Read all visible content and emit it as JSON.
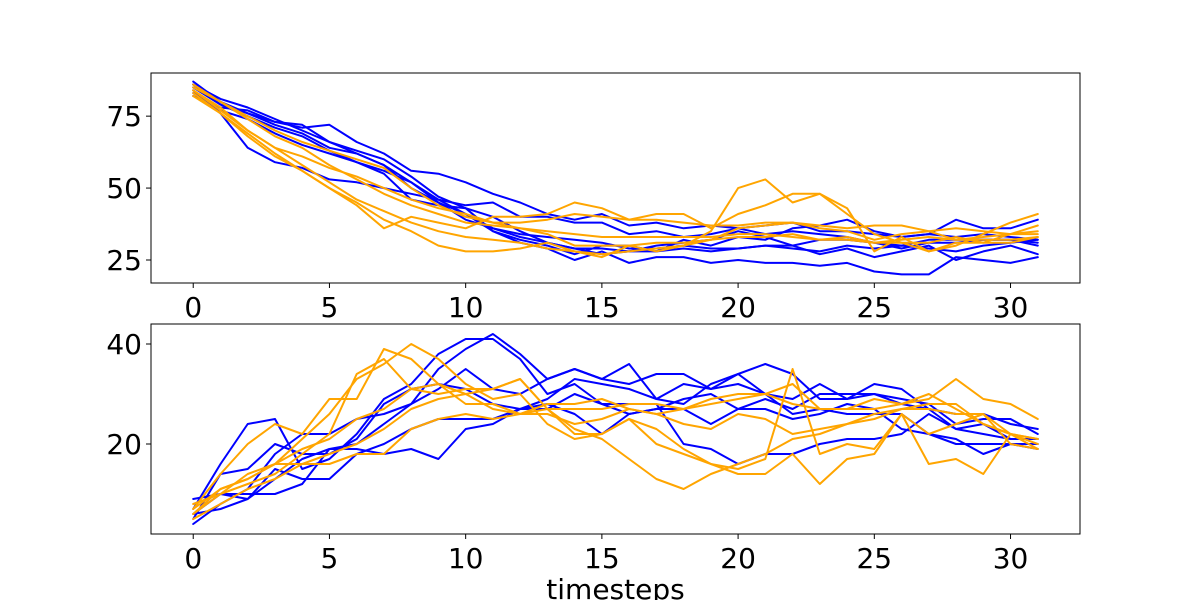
{
  "chart_data": [
    {
      "type": "line",
      "xlabel": "",
      "ylabel": "",
      "xlim": [
        -1.55,
        32.55
      ],
      "ylim": [
        17,
        90
      ],
      "xticks": [
        0,
        5,
        10,
        15,
        20,
        25,
        30
      ],
      "yticks": [
        25,
        50,
        75
      ],
      "grid": false,
      "x": [
        0,
        1,
        2,
        3,
        4,
        5,
        6,
        7,
        8,
        9,
        10,
        11,
        12,
        13,
        14,
        15,
        16,
        17,
        18,
        19,
        20,
        21,
        22,
        23,
        24,
        25,
        26,
        27,
        28,
        29,
        30,
        31
      ],
      "series": [
        {
          "color": "#0000ff",
          "values": [
            87,
            80,
            76,
            73,
            72,
            66,
            62,
            58,
            50,
            45,
            41,
            35,
            31,
            29,
            25,
            28,
            24,
            26,
            26,
            24,
            25,
            24,
            24,
            23,
            24,
            21,
            20,
            20,
            26,
            25,
            24,
            26
          ]
        },
        {
          "color": "#0000ff",
          "values": [
            86,
            81,
            78,
            74,
            70,
            66,
            63,
            60,
            54,
            47,
            43,
            40,
            35,
            31,
            29,
            27,
            28,
            28,
            29,
            28,
            29,
            30,
            29,
            28,
            30,
            29,
            30,
            29,
            28,
            30,
            31,
            32
          ]
        },
        {
          "color": "#0000ff",
          "values": [
            85,
            79,
            76,
            72,
            69,
            64,
            62,
            58,
            52,
            45,
            39,
            36,
            33,
            31,
            29,
            29,
            28,
            30,
            31,
            32,
            35,
            33,
            30,
            27,
            29,
            26,
            28,
            30,
            25,
            28,
            30,
            27
          ]
        },
        {
          "color": "#0000ff",
          "values": [
            84,
            76,
            64,
            59,
            57,
            53,
            52,
            50,
            48,
            46,
            41,
            36,
            34,
            33,
            32,
            31,
            29,
            29,
            30,
            29,
            29,
            30,
            30,
            32,
            32,
            31,
            29,
            31,
            31,
            32,
            32,
            31
          ]
        },
        {
          "color": "#0000ff",
          "values": [
            83,
            77,
            74,
            69,
            65,
            62,
            59,
            55,
            46,
            44,
            43,
            35,
            32,
            30,
            27,
            30,
            30,
            28,
            32,
            30,
            33,
            32,
            36,
            37,
            39,
            35,
            33,
            34,
            39,
            36,
            36,
            39
          ]
        },
        {
          "color": "#0000ff",
          "values": [
            82,
            78,
            77,
            73,
            71,
            72,
            66,
            62,
            56,
            55,
            52,
            48,
            45,
            41,
            39,
            41,
            37,
            38,
            36,
            37,
            36,
            37,
            38,
            35,
            35,
            34,
            33,
            34,
            33,
            34,
            33,
            32
          ]
        },
        {
          "color": "#0000ff",
          "values": [
            86,
            79,
            75,
            71,
            68,
            63,
            59,
            56,
            52,
            46,
            44,
            45,
            40,
            40,
            38,
            38,
            34,
            35,
            33,
            34,
            36,
            34,
            35,
            34,
            33,
            31,
            30,
            32,
            32,
            32,
            32,
            30
          ]
        },
        {
          "color": "#ffa500",
          "values": [
            83,
            76,
            68,
            61,
            56,
            50,
            45,
            39,
            35,
            30,
            28,
            28,
            29,
            31,
            28,
            26,
            30,
            28,
            30,
            32,
            36,
            37,
            38,
            36,
            35,
            32,
            34,
            35,
            32,
            33,
            34,
            35
          ]
        },
        {
          "color": "#ffa500",
          "values": [
            84,
            78,
            70,
            64,
            61,
            57,
            54,
            50,
            46,
            43,
            41,
            38,
            36,
            34,
            30,
            30,
            30,
            31,
            31,
            32,
            33,
            33,
            34,
            32,
            33,
            31,
            31,
            31,
            33,
            31,
            31,
            33
          ]
        },
        {
          "color": "#ffa500",
          "values": [
            85,
            80,
            74,
            68,
            64,
            58,
            53,
            48,
            44,
            41,
            38,
            37,
            36,
            35,
            34,
            33,
            33,
            33,
            33,
            33,
            34,
            34,
            33,
            32,
            32,
            31,
            32,
            33,
            32,
            32,
            32,
            33
          ]
        },
        {
          "color": "#ffa500",
          "values": [
            82,
            76,
            69,
            62,
            56,
            50,
            44,
            36,
            40,
            38,
            36,
            40,
            40,
            41,
            45,
            43,
            39,
            41,
            41,
            36,
            41,
            44,
            48,
            48,
            43,
            28,
            33,
            28,
            31,
            31,
            34,
            37
          ]
        },
        {
          "color": "#ffa500",
          "values": [
            84,
            77,
            70,
            64,
            58,
            52,
            46,
            42,
            38,
            35,
            33,
            32,
            31,
            29,
            28,
            27,
            28,
            29,
            30,
            35,
            50,
            53,
            45,
            48,
            41,
            34,
            31,
            28,
            30,
            34,
            38,
            41
          ]
        },
        {
          "color": "#ffa500",
          "values": [
            86,
            80,
            75,
            70,
            66,
            63,
            60,
            57,
            50,
            44,
            40,
            38,
            38,
            39,
            41,
            40,
            39,
            39,
            38,
            37,
            37,
            38,
            38,
            37,
            36,
            37,
            37,
            35,
            36,
            35,
            34,
            34
          ]
        }
      ]
    },
    {
      "type": "line",
      "xlabel": "timesteps",
      "ylabel": "",
      "xlim": [
        -1.55,
        32.55
      ],
      "ylim": [
        2,
        44
      ],
      "xticks": [
        0,
        5,
        10,
        15,
        20,
        25,
        30
      ],
      "yticks": [
        20,
        40
      ],
      "grid": false,
      "x": [
        0,
        1,
        2,
        3,
        4,
        5,
        6,
        7,
        8,
        9,
        10,
        11,
        12,
        13,
        14,
        15,
        16,
        17,
        18,
        19,
        20,
        21,
        22,
        23,
        24,
        25,
        26,
        27,
        28,
        29,
        30,
        31
      ],
      "series": [
        {
          "color": "#0000ff",
          "values": [
            9,
            10,
            10,
            10,
            12,
            19,
            20,
            24,
            28,
            35,
            39,
            42,
            38,
            33,
            35,
            33,
            36,
            29,
            28,
            32,
            34,
            30,
            26,
            27,
            26,
            26,
            26,
            22,
            20,
            20,
            20,
            20
          ]
        },
        {
          "color": "#0000ff",
          "values": [
            5,
            14,
            15,
            20,
            18,
            18,
            21,
            28,
            31,
            32,
            31,
            28,
            27,
            29,
            33,
            32,
            31,
            29,
            32,
            31,
            34,
            36,
            34,
            29,
            29,
            32,
            31,
            27,
            23,
            24,
            21,
            21
          ]
        },
        {
          "color": "#0000ff",
          "values": [
            4,
            8,
            11,
            18,
            22,
            22,
            25,
            26,
            28,
            31,
            35,
            31,
            30,
            33,
            35,
            33,
            32,
            34,
            34,
            31,
            32,
            30,
            29,
            32,
            29,
            30,
            29,
            28,
            24,
            25,
            25,
            22
          ]
        },
        {
          "color": "#0000ff",
          "values": [
            7,
            16,
            24,
            25,
            15,
            17,
            22,
            29,
            32,
            38,
            41,
            41,
            37,
            30,
            32,
            28,
            28,
            28,
            20,
            19,
            16,
            18,
            18,
            20,
            21,
            21,
            22,
            26,
            23,
            22,
            21,
            21
          ]
        },
        {
          "color": "#0000ff",
          "values": [
            6,
            10,
            9,
            15,
            13,
            13,
            18,
            20,
            23,
            25,
            25,
            25,
            27,
            28,
            26,
            22,
            26,
            27,
            29,
            30,
            27,
            29,
            27,
            30,
            30,
            30,
            28,
            27,
            26,
            26,
            24,
            23
          ]
        },
        {
          "color": "#0000ff",
          "values": [
            6,
            7,
            9,
            13,
            17,
            19,
            19,
            18,
            19,
            17,
            23,
            24,
            27,
            27,
            30,
            28,
            26,
            27,
            27,
            24,
            27,
            27,
            25,
            26,
            28,
            27,
            23,
            22,
            21,
            18,
            20,
            19
          ]
        },
        {
          "color": "#ffa500",
          "values": [
            7,
            14,
            20,
            24,
            22,
            29,
            29,
            39,
            37,
            32,
            30,
            31,
            33,
            27,
            23,
            21,
            17,
            13,
            11,
            14,
            16,
            18,
            21,
            22,
            24,
            26,
            27,
            28,
            28,
            24,
            22,
            19
          ]
        },
        {
          "color": "#ffa500",
          "values": [
            6,
            11,
            13,
            16,
            21,
            26,
            33,
            36,
            40,
            37,
            32,
            29,
            30,
            24,
            21,
            22,
            25,
            23,
            19,
            16,
            14,
            14,
            18,
            12,
            17,
            18,
            26,
            22,
            24,
            26,
            20,
            19
          ]
        },
        {
          "color": "#ffa500",
          "values": [
            8,
            10,
            12,
            14,
            18,
            22,
            34,
            37,
            31,
            30,
            31,
            31,
            33,
            27,
            22,
            22,
            25,
            20,
            18,
            16,
            15,
            17,
            35,
            18,
            20,
            19,
            26,
            16,
            17,
            14,
            22,
            21
          ]
        },
        {
          "color": "#ffa500",
          "values": [
            6,
            10,
            14,
            16,
            19,
            21,
            25,
            27,
            31,
            32,
            28,
            28,
            26,
            28,
            28,
            29,
            27,
            26,
            27,
            29,
            30,
            30,
            32,
            27,
            27,
            29,
            28,
            30,
            27,
            24,
            22,
            20
          ]
        },
        {
          "color": "#ffa500",
          "values": [
            7,
            11,
            13,
            16,
            16,
            18,
            20,
            23,
            27,
            29,
            30,
            27,
            26,
            27,
            27,
            27,
            28,
            28,
            27,
            28,
            29,
            30,
            28,
            27,
            27,
            27,
            28,
            29,
            33,
            29,
            28,
            25
          ]
        },
        {
          "color": "#ffa500",
          "values": [
            5,
            8,
            11,
            13,
            16,
            16,
            18,
            18,
            23,
            25,
            26,
            25,
            26,
            26,
            24,
            25,
            27,
            26,
            24,
            23,
            26,
            25,
            22,
            23,
            24,
            25,
            27,
            27,
            26,
            26,
            22,
            21
          ]
        }
      ]
    }
  ]
}
